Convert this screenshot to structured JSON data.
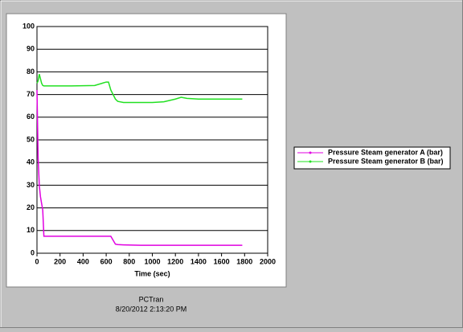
{
  "chart_data": {
    "type": "line",
    "x_label": "Time (sec)",
    "x": [
      0,
      10,
      20,
      30,
      40,
      50,
      60,
      100,
      300,
      500,
      600,
      620,
      640,
      680,
      700,
      750,
      900,
      1000,
      1100,
      1200,
      1250,
      1300,
      1400,
      1600,
      1780
    ],
    "series": [
      {
        "name": "Pressure Steam generator A (bar)",
        "color": "#e100e1",
        "values": [
          72,
          42,
          30,
          25,
          22,
          19,
          7.5,
          7.5,
          7.5,
          7.5,
          7.5,
          7.5,
          7.5,
          4,
          3.8,
          3.7,
          3.5,
          3.5,
          3.5,
          3.5,
          3.5,
          3.5,
          3.5,
          3.5,
          3.5
        ]
      },
      {
        "name": "Pressure Steam generator B (bar)",
        "color": "#22e022",
        "values": [
          75,
          76,
          79,
          77,
          75,
          74,
          73.8,
          73.8,
          73.8,
          74,
          75.5,
          75.5,
          72,
          68,
          67,
          66.5,
          66.5,
          66.5,
          66.8,
          68,
          68.8,
          68.3,
          68,
          68,
          68
        ]
      }
    ],
    "xlim": [
      0,
      2000
    ],
    "xticks": [
      0,
      200,
      400,
      600,
      800,
      1000,
      1200,
      1400,
      1600,
      1800,
      2000
    ],
    "ylim": [
      0,
      100
    ],
    "yticks": [
      0,
      10,
      20,
      30,
      40,
      50,
      60,
      70,
      80,
      90,
      100
    ],
    "grid": true
  },
  "footer": {
    "app": "PCTran",
    "timestamp": "8/20/2012 2:13:20 PM"
  }
}
